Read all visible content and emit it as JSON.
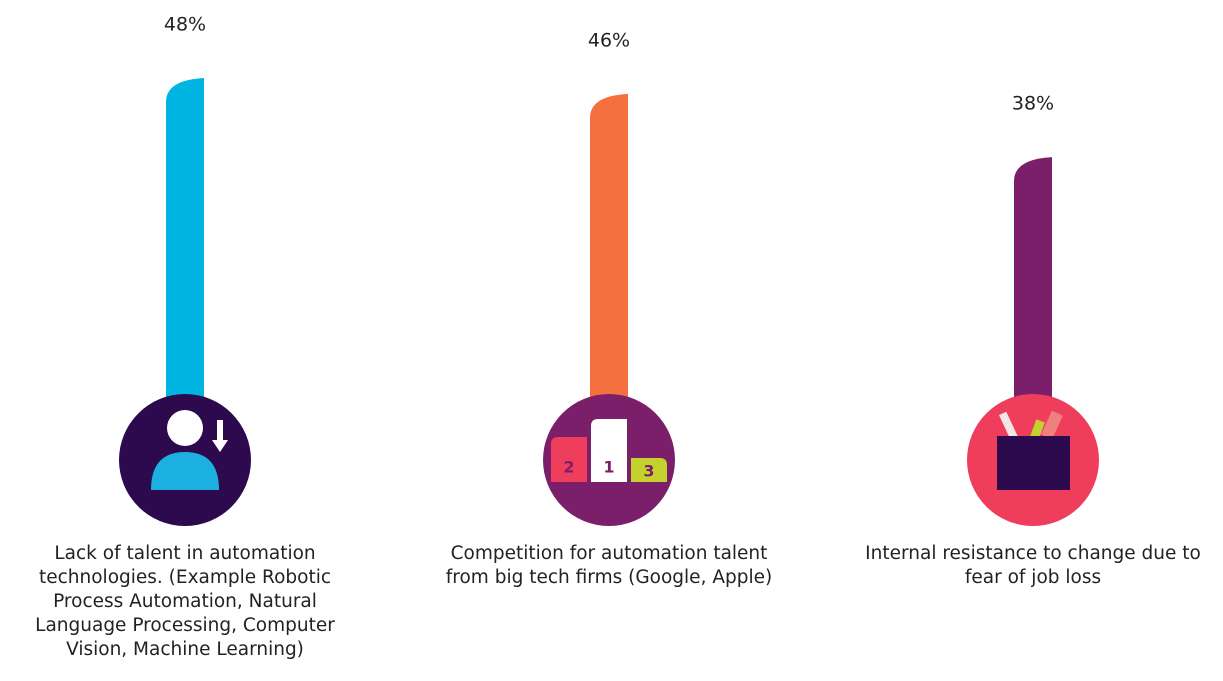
{
  "chart_data": {
    "type": "bar",
    "categories": [
      "Lack of talent in automation technologies. (Example Robotic Process Automation, Natural Language Processing, Computer Vision, Machine Learning)",
      "Competition for automation talent from big tech firms (Google, Apple)",
      "Internal resistance to change due to fear of job loss"
    ],
    "values": [
      48,
      46,
      38
    ],
    "value_labels": [
      "48%",
      "46%",
      "38%"
    ],
    "colors": [
      "#00b5e2",
      "#f4703f",
      "#7b1f6a"
    ]
  },
  "icons": {
    "podium": [
      "2",
      "1",
      "3"
    ]
  }
}
